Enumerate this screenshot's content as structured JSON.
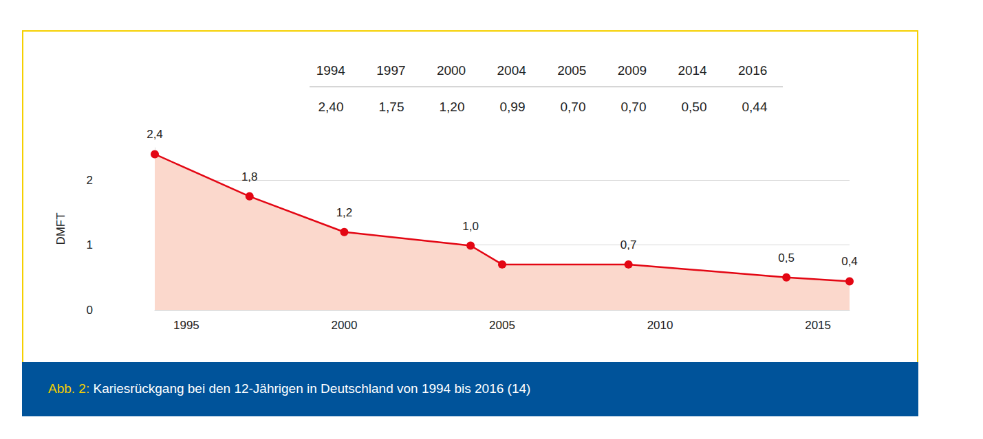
{
  "chart_data": {
    "type": "line",
    "title": "Abb. 2: Kariesrückgang bei den 12-Jährigen in Deutschland von 1994 bis 2016 (14)",
    "x": [
      1994,
      1997,
      2000,
      2004,
      2005,
      2009,
      2014,
      2016
    ],
    "values": [
      2.4,
      1.75,
      1.2,
      0.99,
      0.7,
      0.7,
      0.5,
      0.44
    ],
    "value_labels": [
      "2,4",
      "1,8",
      "1,2",
      "1,0",
      null,
      "0,7",
      "0,5",
      "0,4"
    ],
    "data_labels": true,
    "ylabel": "DMFT",
    "xlim": [
      1994,
      2016
    ],
    "xticks": [
      1995,
      2000,
      2005,
      2010,
      2015
    ],
    "ylim": [
      0,
      2.5
    ],
    "yticks": [
      0,
      1,
      2
    ],
    "grid": true,
    "color": "#e30613",
    "marker": "circle",
    "table": {
      "header": [
        "1994",
        "1997",
        "2000",
        "2004",
        "2005",
        "2009",
        "2014",
        "2016"
      ],
      "values": [
        "2,40",
        "1,75",
        "1,20",
        "0,99",
        "0,70",
        "0,70",
        "0,50",
        "0,44"
      ]
    }
  }
}
